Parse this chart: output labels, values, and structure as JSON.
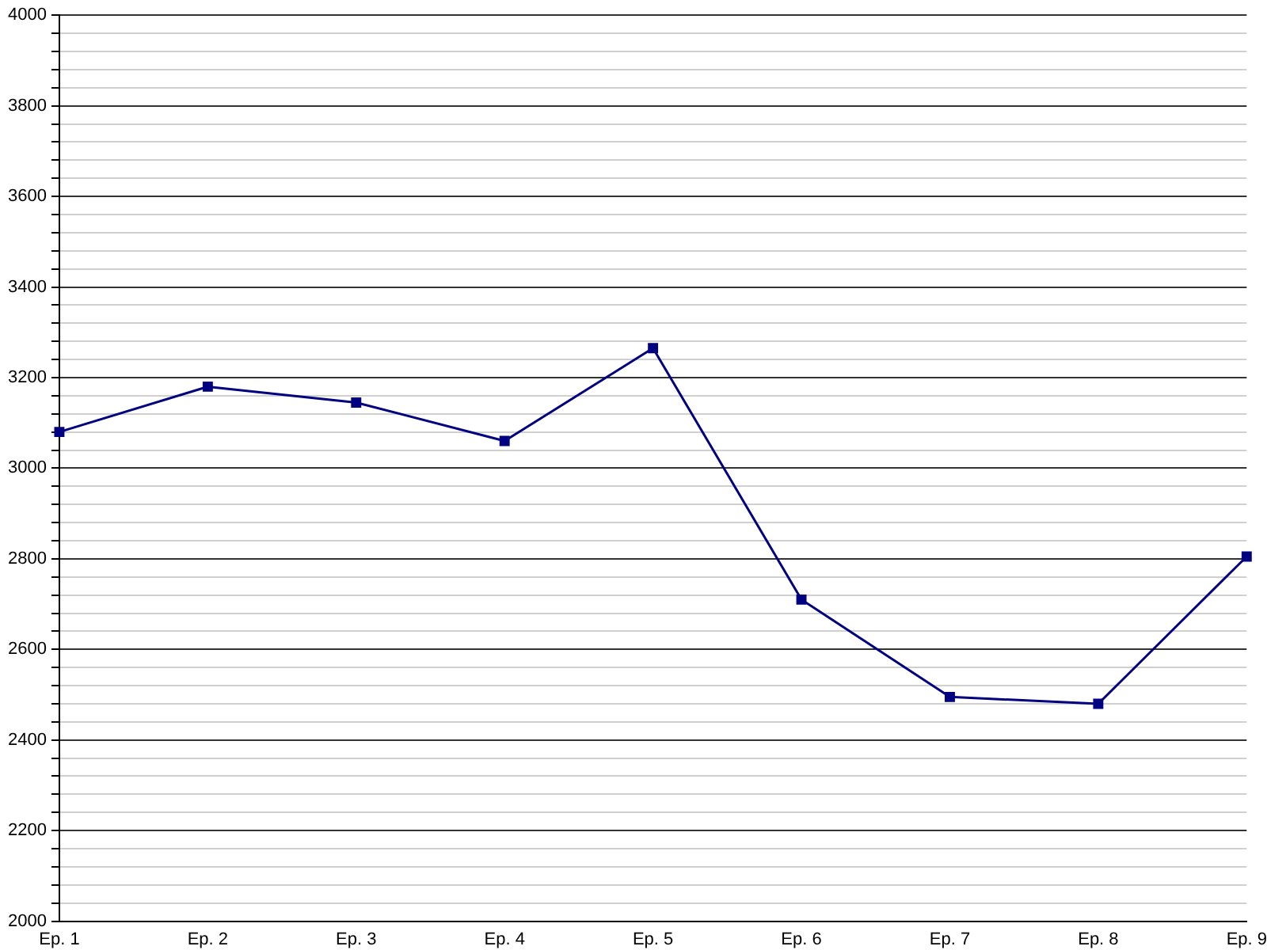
{
  "chart_data": {
    "type": "line",
    "categories": [
      "Ep. 1",
      "Ep. 2",
      "Ep. 3",
      "Ep. 4",
      "Ep. 5",
      "Ep. 6",
      "Ep. 7",
      "Ep. 8",
      "Ep. 9"
    ],
    "series": [
      {
        "color": "#000080",
        "values": [
          3080,
          3180,
          3145,
          3060,
          3265,
          2710,
          2495,
          2480,
          2805
        ]
      }
    ],
    "ylim": [
      2000,
      4000
    ],
    "yticks": [
      2000,
      {
        "value": 2040,
        "label": null
      },
      {
        "value": 2080,
        "label": null
      },
      {
        "value": 2120,
        "label": null
      },
      {
        "value": 2160,
        "label": null
      },
      2200,
      {
        "value": 2240,
        "label": null
      },
      {
        "value": 2280,
        "label": null
      },
      {
        "value": 2320,
        "label": null
      },
      {
        "value": 2360,
        "label": null
      },
      2400,
      {
        "value": 2440,
        "label": null
      },
      {
        "value": 2480,
        "label": null
      },
      {
        "value": 2520,
        "label": null
      },
      {
        "value": 2560,
        "label": null
      },
      2600,
      {
        "value": 2640,
        "label": null
      },
      {
        "value": 2680,
        "label": null
      },
      {
        "value": 2720,
        "label": null
      },
      {
        "value": 2760,
        "label": null
      },
      2800,
      {
        "value": 2840,
        "label": null
      },
      {
        "value": 2880,
        "label": null
      },
      {
        "value": 2920,
        "label": null
      },
      {
        "value": 2960,
        "label": null
      },
      3000,
      {
        "value": 3040,
        "label": null
      },
      {
        "value": 3080,
        "label": null
      },
      {
        "value": 3120,
        "label": null
      },
      {
        "value": 3160,
        "label": null
      },
      3200,
      {
        "value": 3240,
        "label": null
      },
      {
        "value": 3280,
        "label": null
      },
      {
        "value": 3320,
        "label": null
      },
      {
        "value": 3360,
        "label": null
      },
      3400,
      {
        "value": 3440,
        "label": null
      },
      {
        "value": 3480,
        "label": null
      },
      {
        "value": 3520,
        "label": null
      },
      {
        "value": 3560,
        "label": null
      },
      3600,
      {
        "value": 3640,
        "label": null
      },
      {
        "value": 3680,
        "label": null
      },
      {
        "value": 3720,
        "label": null
      },
      {
        "value": 3760,
        "label": null
      },
      3800,
      {
        "value": 3840,
        "label": null
      },
      {
        "value": 3880,
        "label": null
      },
      {
        "value": 3920,
        "label": null
      },
      {
        "value": 3960,
        "label": null
      },
      4000
    ],
    "grid": "y",
    "legend": false,
    "marker": "square",
    "line_style": "solid"
  }
}
